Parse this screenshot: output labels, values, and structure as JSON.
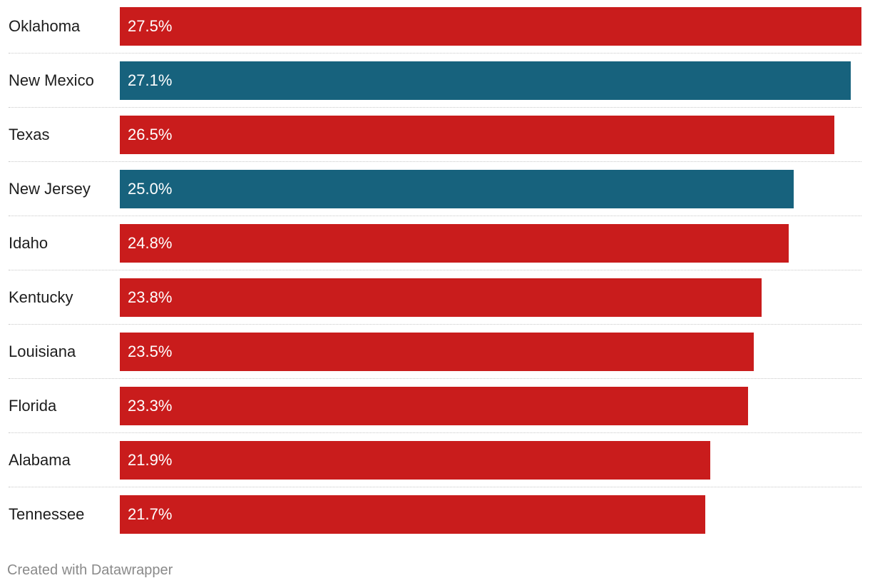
{
  "chart_data": {
    "type": "bar",
    "orientation": "horizontal",
    "title": "",
    "xlabel": "",
    "ylabel": "",
    "xlim": [
      0,
      27.5
    ],
    "grid": false,
    "categories": [
      "Oklahoma",
      "New Mexico",
      "Texas",
      "New Jersey",
      "Idaho",
      "Kentucky",
      "Louisiana",
      "Florida",
      "Alabama",
      "Tennessee"
    ],
    "values": [
      27.5,
      27.1,
      26.5,
      25.0,
      24.8,
      23.8,
      23.5,
      23.3,
      21.9,
      21.7
    ],
    "value_labels": [
      "27.5%",
      "27.1%",
      "26.5%",
      "25.0%",
      "24.8%",
      "23.8%",
      "23.5%",
      "23.3%",
      "21.9%",
      "21.7%"
    ],
    "bar_colors": [
      "#c91c1c",
      "#17627d",
      "#c91c1c",
      "#17627d",
      "#c91c1c",
      "#c91c1c",
      "#c91c1c",
      "#c91c1c",
      "#c91c1c",
      "#c91c1c"
    ]
  },
  "colors": {
    "red": "#c91c1c",
    "blue": "#17627d"
  },
  "footer": {
    "credit": "Created with Datawrapper"
  }
}
